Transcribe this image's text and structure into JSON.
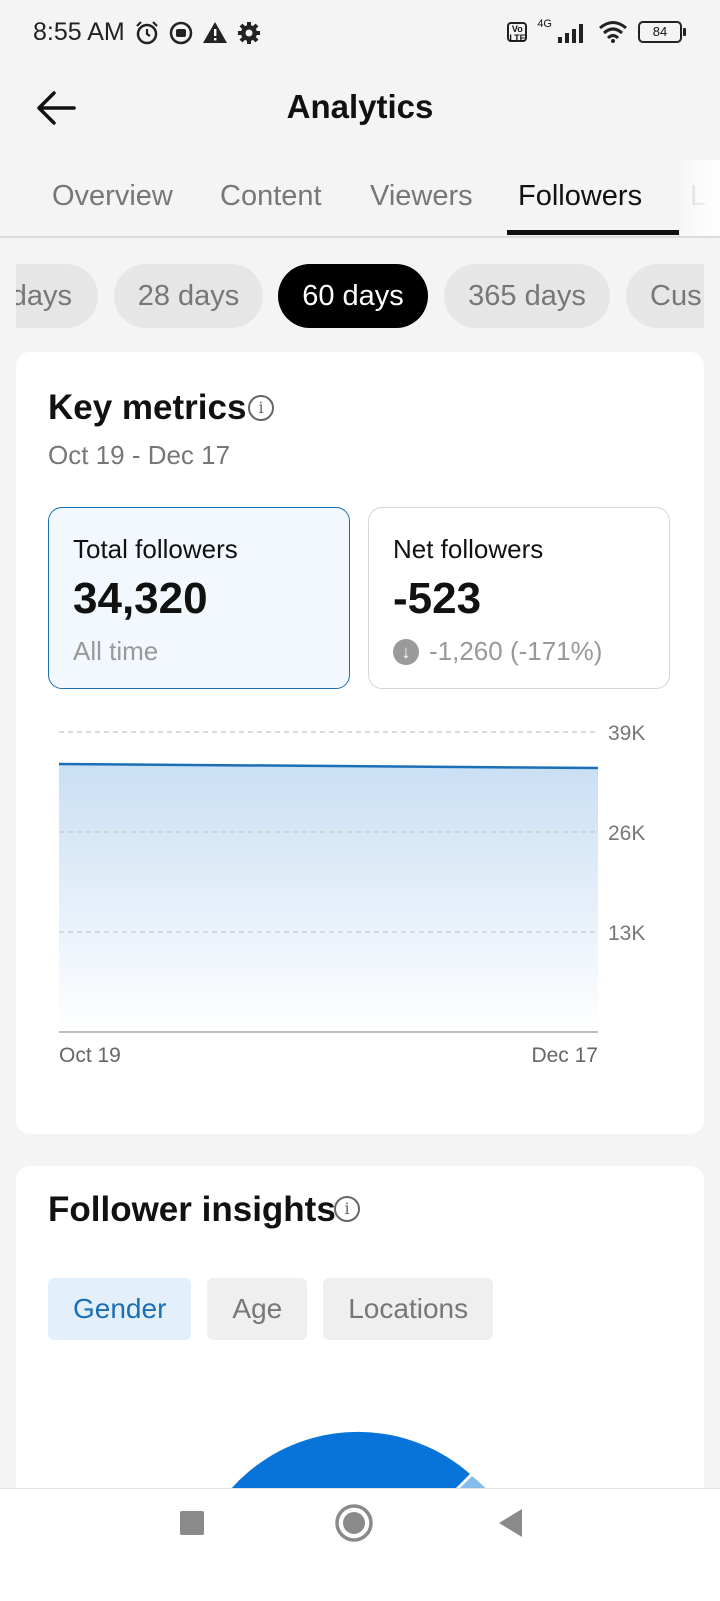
{
  "status_bar": {
    "time": "8:55 AM",
    "network": "4G",
    "volte": "Vo LTE",
    "battery": "84"
  },
  "header": {
    "title": "Analytics"
  },
  "tabs": [
    {
      "label": "Overview"
    },
    {
      "label": "Content"
    },
    {
      "label": "Viewers"
    },
    {
      "label": "Followers",
      "active": true
    },
    {
      "label": "L"
    }
  ],
  "date_chips": [
    {
      "label": "days"
    },
    {
      "label": "28 days"
    },
    {
      "label": "60 days",
      "active": true
    },
    {
      "label": "365 days"
    },
    {
      "label": "Cus"
    }
  ],
  "key_metrics": {
    "title": "Key metrics",
    "date_range": "Oct 19 - Dec 17",
    "cards": [
      {
        "label": "Total followers",
        "value": "34,320",
        "sub": "All time"
      },
      {
        "label": "Net followers",
        "value": "-523",
        "sub": "-1,260 (-171%)"
      }
    ]
  },
  "chart_data": {
    "type": "area",
    "x": [
      "Oct 19",
      "Dec 17"
    ],
    "series": [
      {
        "values": [
          34843,
          34320
        ]
      }
    ],
    "ylim": [
      0,
      39000
    ],
    "y_ticks": [
      "39K",
      "26K",
      "13K"
    ],
    "x_ticks": [
      "Oct 19",
      "Dec 17"
    ],
    "grid": true,
    "colors": {
      "line": "#1a6fb6",
      "fill_top": "#c9dff4"
    }
  },
  "follower_insights": {
    "title": "Follower insights",
    "tabs": [
      {
        "label": "Gender",
        "active": true
      },
      {
        "label": "Age"
      },
      {
        "label": "Locations"
      }
    ]
  },
  "colors": {
    "accent": "#1a6fb6",
    "donut_primary": "#0874d9",
    "donut_secondary": "#86bcec"
  }
}
